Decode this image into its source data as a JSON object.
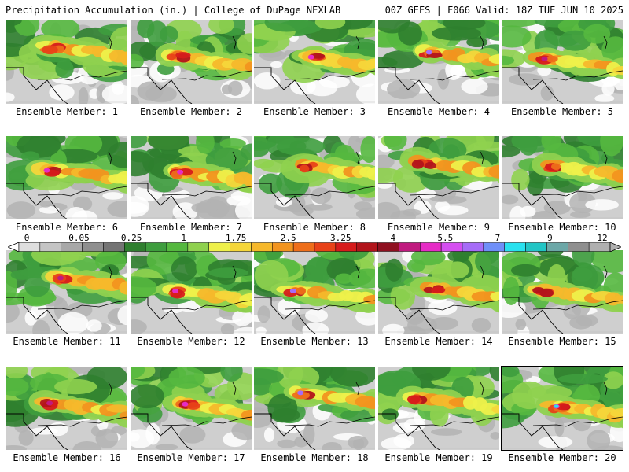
{
  "header": {
    "title_left": "Precipitation Accumulation (in.) | College of DuPage NEXLAB",
    "title_right": "00Z GEFS | F066 Valid: 18Z TUE JUN 10 2025"
  },
  "legend": {
    "ticks": [
      "0",
      "0.05",
      "0.25",
      "1",
      "1.75",
      "2.5",
      "3.25",
      "4",
      "5.5",
      "7",
      "9",
      "12"
    ],
    "colors": [
      "#dedede",
      "#c4c4c4",
      "#a8a8a8",
      "#8f8f8f",
      "#747474",
      "#2f7f2f",
      "#3e9d3e",
      "#55b83f",
      "#8fd14f",
      "#eef04a",
      "#f5d63a",
      "#f6b82b",
      "#f2941f",
      "#ee6e1a",
      "#e84218",
      "#d61b1b",
      "#b2141b",
      "#8f1020",
      "#c01a7f",
      "#e62cc6",
      "#d54ff0",
      "#a66cf7",
      "#6f8ff8",
      "#29e1ef",
      "#22c5c5",
      "#6ca7a7",
      "#8f8f8f",
      "#b0b0b0"
    ]
  },
  "panels": [
    {
      "label": "Ensemble Member: 1",
      "highlighted": false
    },
    {
      "label": "Ensemble Member: 2",
      "highlighted": false
    },
    {
      "label": "Ensemble Member: 3",
      "highlighted": false
    },
    {
      "label": "Ensemble Member: 4",
      "highlighted": false
    },
    {
      "label": "Ensemble Member: 5",
      "highlighted": false
    },
    {
      "label": "Ensemble Member: 6",
      "highlighted": false
    },
    {
      "label": "Ensemble Member: 7",
      "highlighted": false
    },
    {
      "label": "Ensemble Member: 8",
      "highlighted": false
    },
    {
      "label": "Ensemble Member: 9",
      "highlighted": false
    },
    {
      "label": "Ensemble Member: 10",
      "highlighted": false
    },
    {
      "label": "Ensemble Member: 11",
      "highlighted": false
    },
    {
      "label": "Ensemble Member: 12",
      "highlighted": false
    },
    {
      "label": "Ensemble Member: 13",
      "highlighted": false
    },
    {
      "label": "Ensemble Member: 14",
      "highlighted": false
    },
    {
      "label": "Ensemble Member: 15",
      "highlighted": false
    },
    {
      "label": "Ensemble Member: 16",
      "highlighted": false
    },
    {
      "label": "Ensemble Member: 17",
      "highlighted": false
    },
    {
      "label": "Ensemble Member: 18",
      "highlighted": false
    },
    {
      "label": "Ensemble Member: 19",
      "highlighted": false
    },
    {
      "label": "Ensemble Member: 20",
      "highlighted": true
    }
  ]
}
